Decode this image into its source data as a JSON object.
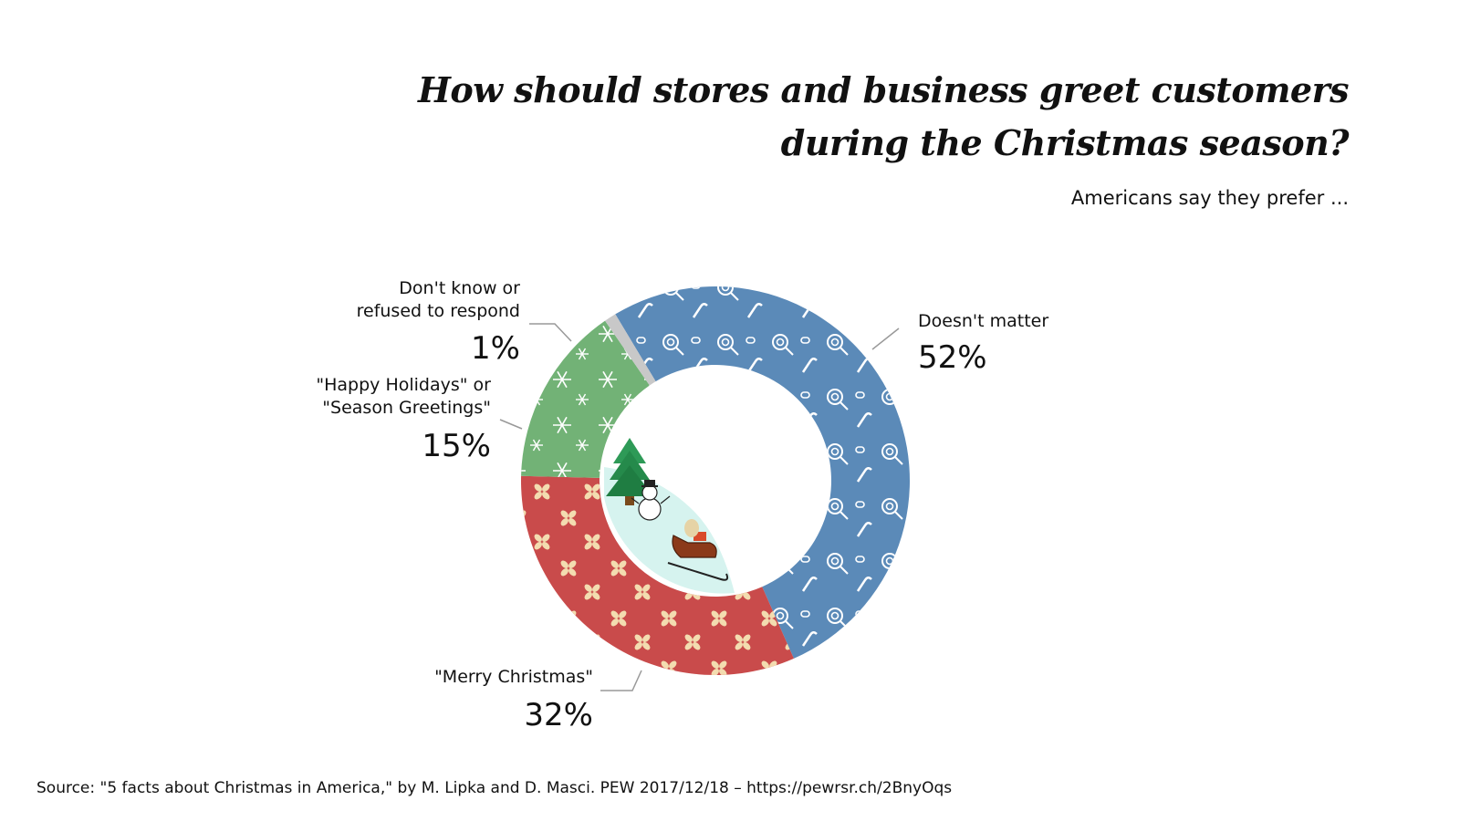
{
  "title_line1": "How should stores and business greet customers",
  "title_line2": "during the Christmas season?",
  "subtitle": "Americans say they prefer ...",
  "source": "Source: \"5 facts about Christmas in America,\" by M. Lipka and D. Masci. PEW 2017/12/18 – https://pewrsr.ch/2BnyOqs",
  "chart_data": {
    "type": "pie",
    "variant": "donut",
    "unit": "%",
    "slices": [
      {
        "name": "Doesn't matter",
        "label_lines": [
          "Doesn't matter"
        ],
        "value": 52,
        "display": "52%",
        "color": "#5b8ab8",
        "pattern": "candy"
      },
      {
        "name": "\"Merry Christmas\"",
        "label_lines": [
          "\"Merry Christmas\""
        ],
        "value": 32,
        "display": "32%",
        "color": "#c94b4b",
        "pattern": "flowers"
      },
      {
        "name": "\"Happy Holidays\" or \"Season Greetings\"",
        "label_lines": [
          "\"Happy Holidays\" or",
          "\"Season Greetings\""
        ],
        "value": 15,
        "display": "15%",
        "color": "#72b276",
        "pattern": "snowflakes"
      },
      {
        "name": "Don't know or refused to respond",
        "label_lines": [
          "Don't know or",
          "refused to respond"
        ],
        "value": 1,
        "display": "1%",
        "color": "#c8c8c8",
        "pattern": "none"
      }
    ],
    "center_decoration": [
      "tree-icon",
      "snowman-icon",
      "sleigh-icon"
    ]
  }
}
